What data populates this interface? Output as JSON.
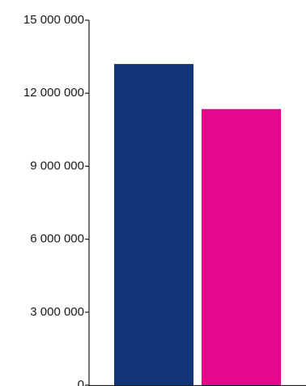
{
  "chart_data": {
    "type": "bar",
    "categories": [
      "",
      ""
    ],
    "values": [
      13200000,
      11350000
    ],
    "colors": [
      "#12357a",
      "#e5088d"
    ],
    "ylim": [
      0,
      15000000
    ],
    "y_ticks": [
      0,
      3000000,
      6000000,
      9000000,
      12000000,
      15000000
    ],
    "y_tick_labels": [
      "0",
      "3 000 000",
      "6 000 000",
      "9 000 000",
      "12 000 000",
      "15 000 000"
    ],
    "grid": false,
    "legend": "none"
  }
}
